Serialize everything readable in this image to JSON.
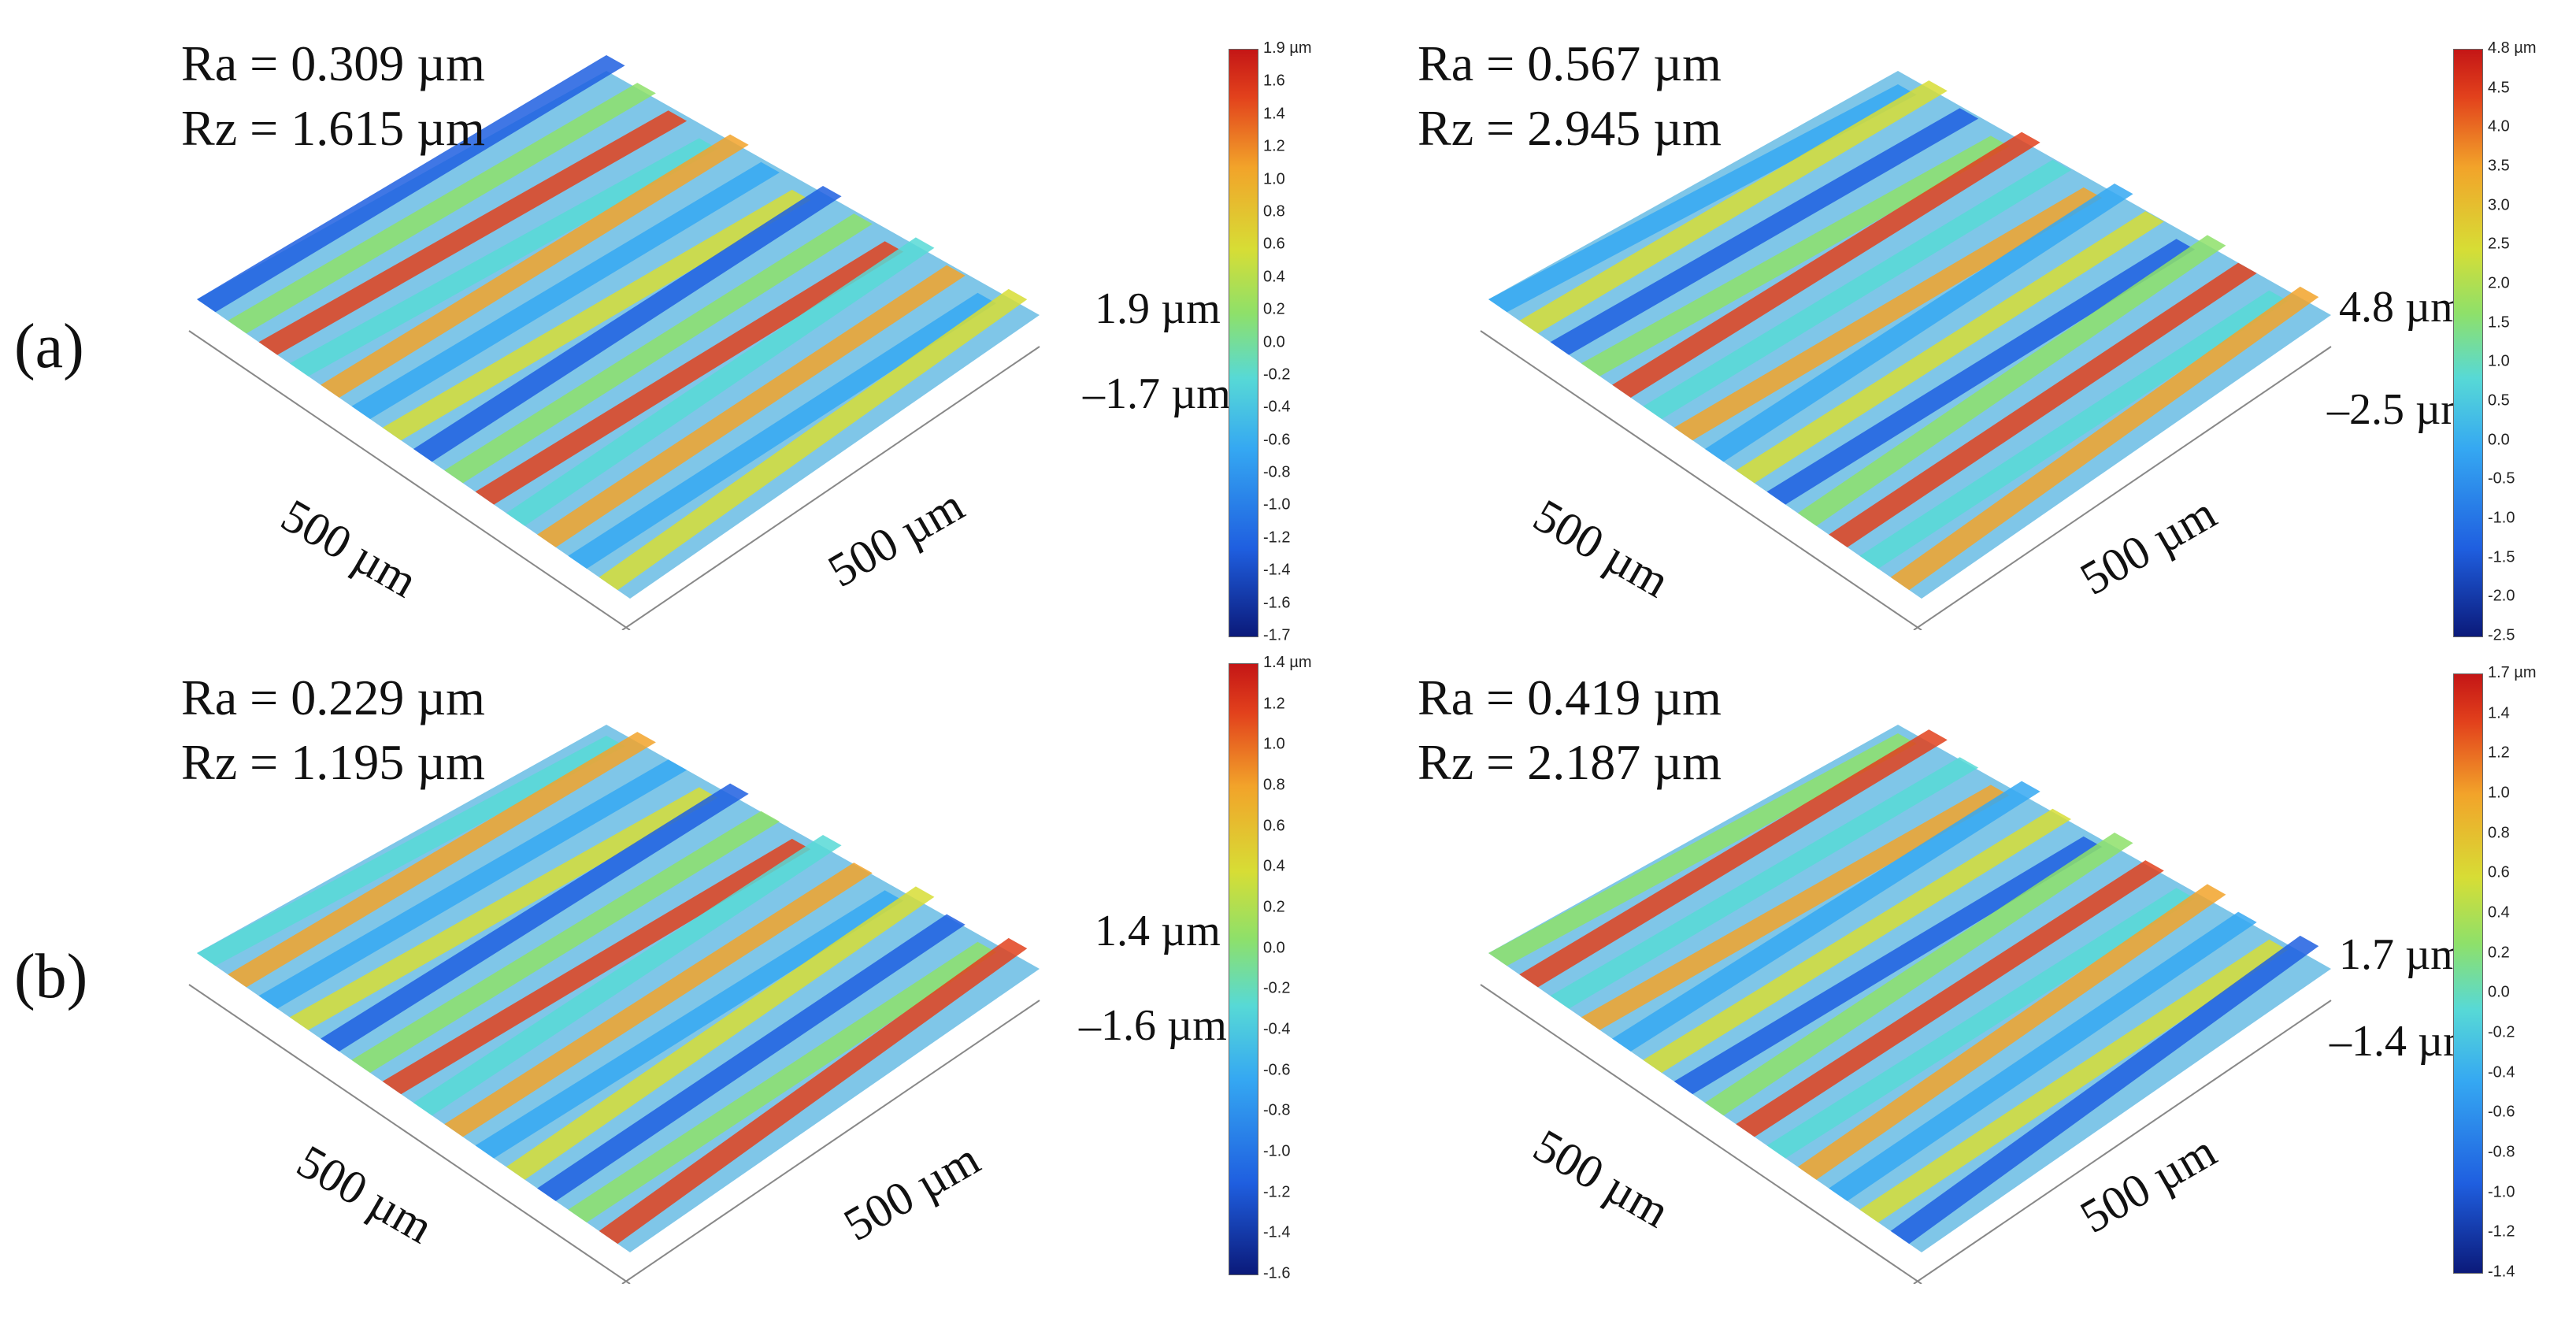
{
  "figure": {
    "row_labels": [
      "(a)",
      "(b)"
    ],
    "colors": {
      "low": "#0b1a7a",
      "mid": "#57d9d6",
      "high": "#c41616"
    },
    "panels": [
      {
        "id": "a-left",
        "ra": "Ra = 0.309 µm",
        "rz": "Rz = 1.615 µm",
        "zmax": "1.9 µm",
        "zmin": "–1.7 µm",
        "x_axis": "500 µm",
        "y_axis": "500 µm",
        "colorbar_top": "1.9 µm",
        "colorbar_ticks": [
          "1.6",
          "1.4",
          "1.2",
          "1.0",
          "0.8",
          "0.6",
          "0.4",
          "0.2",
          "0.0",
          "-0.2",
          "-0.4",
          "-0.6",
          "-0.8",
          "-1.0",
          "-1.2",
          "-1.4",
          "-1.6",
          "-1.7"
        ]
      },
      {
        "id": "a-right",
        "ra": "Ra = 0.567 µm",
        "rz": "Rz = 2.945 µm",
        "zmax": "4.8 µm",
        "zmin": "–2.5 µm",
        "x_axis": "500 µm",
        "y_axis": "500 µm",
        "colorbar_top": "4.8 µm",
        "colorbar_ticks": [
          "4.5",
          "4.0",
          "3.5",
          "3.0",
          "2.5",
          "2.0",
          "1.5",
          "1.0",
          "0.5",
          "0.0",
          "-0.5",
          "-1.0",
          "-1.5",
          "-2.0",
          "-2.5"
        ]
      },
      {
        "id": "b-left",
        "ra": "Ra = 0.229 µm",
        "rz": "Rz = 1.195 µm",
        "zmax": "1.4 µm",
        "zmin": "–1.6 µm",
        "x_axis": "500 µm",
        "y_axis": "500 µm",
        "colorbar_top": "1.4 µm",
        "colorbar_ticks": [
          "1.2",
          "1.0",
          "0.8",
          "0.6",
          "0.4",
          "0.2",
          "0.0",
          "-0.2",
          "-0.4",
          "-0.6",
          "-0.8",
          "-1.0",
          "-1.2",
          "-1.4",
          "-1.6"
        ]
      },
      {
        "id": "b-right",
        "ra": "Ra = 0.419 µm",
        "rz": "Rz = 2.187 µm",
        "zmax": "1.7 µm",
        "zmin": "–1.4 µm",
        "x_axis": "500 µm",
        "y_axis": "500 µm",
        "colorbar_top": "1.7 µm",
        "colorbar_ticks": [
          "1.4",
          "1.2",
          "1.0",
          "0.8",
          "0.6",
          "0.4",
          "0.2",
          "0.0",
          "-0.2",
          "-0.4",
          "-0.6",
          "-0.8",
          "-1.0",
          "-1.2",
          "-1.4"
        ]
      }
    ]
  }
}
